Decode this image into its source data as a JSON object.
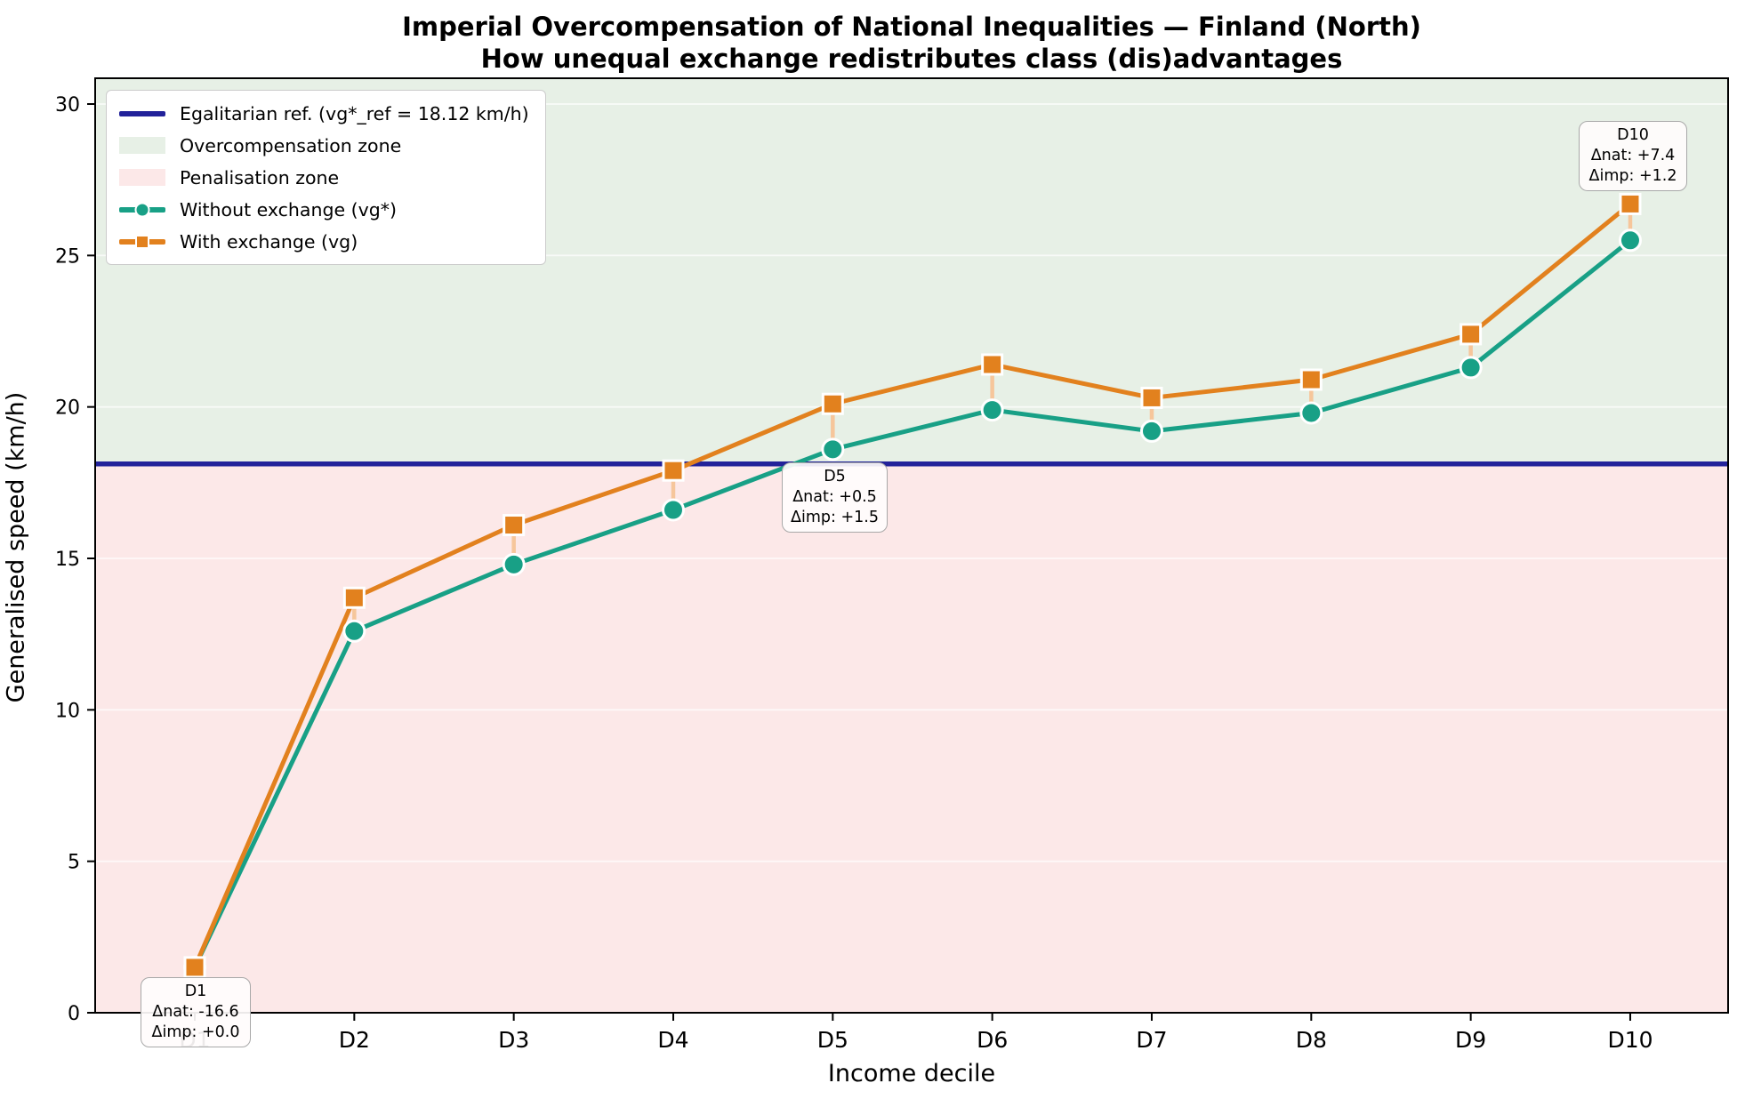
{
  "title": "Imperial Overcompensation of National Inequalities — Finland (North)",
  "subtitle": "How unequal exchange redistributes class (dis)advantages",
  "axes": {
    "x_label": "Income decile",
    "y_label": "Generalised speed (km/h)"
  },
  "legend": {
    "ref_label": "Egalitarian ref. (vg*_ref = 18.12 km/h)",
    "overcompensation_label": "Overcompensation zone",
    "penalisation_label": "Penalisation zone",
    "without_exchange_label": "Without exchange (vg*)",
    "with_exchange_label": "With exchange (vg)"
  },
  "colors": {
    "navy": "#22229a",
    "teal": "#18a086",
    "orange": "#e2811e",
    "stem": "#f6c69b",
    "zone_over": "#e7f0e6",
    "zone_pen": "#fce8e8",
    "grid": "#ffffff"
  },
  "chart_data": {
    "type": "line",
    "categories": [
      "D1",
      "D2",
      "D3",
      "D4",
      "D5",
      "D6",
      "D7",
      "D8",
      "D9",
      "D10"
    ],
    "series": [
      {
        "name": "Without exchange (vg*)",
        "marker": "circle",
        "color_key": "teal",
        "values": [
          1.5,
          12.6,
          14.8,
          16.6,
          18.6,
          19.9,
          19.2,
          19.8,
          21.3,
          25.5
        ]
      },
      {
        "name": "With exchange (vg)",
        "marker": "square",
        "color_key": "orange",
        "values": [
          1.5,
          13.7,
          16.1,
          17.9,
          20.1,
          21.4,
          20.3,
          20.9,
          22.4,
          26.7
        ]
      }
    ],
    "reference_line": {
      "value": 18.12,
      "label": "Egalitarian ref. (vg*_ref = 18.12 km/h)"
    },
    "zones": [
      {
        "name": "Overcompensation zone",
        "from": 18.12,
        "to": 30.85
      },
      {
        "name": "Penalisation zone",
        "from": 0,
        "to": 18.12
      }
    ],
    "xlabel": "Income decile",
    "ylabel": "Generalised speed (km/h)",
    "y_ticks": [
      0,
      5,
      10,
      15,
      20,
      25,
      30
    ],
    "ylim": [
      0,
      30.85
    ],
    "grid": true,
    "legend_position": "upper left"
  },
  "annotations": [
    {
      "target": "D1",
      "line1": "D1",
      "line2": "Δnat: -16.6",
      "line3": "Δimp: +0.0"
    },
    {
      "target": "D5",
      "line1": "D5",
      "line2": "Δnat: +0.5",
      "line3": "Δimp: +1.5"
    },
    {
      "target": "D10",
      "line1": "D10",
      "line2": "Δnat: +7.4",
      "line3": "Δimp: +1.2"
    }
  ]
}
